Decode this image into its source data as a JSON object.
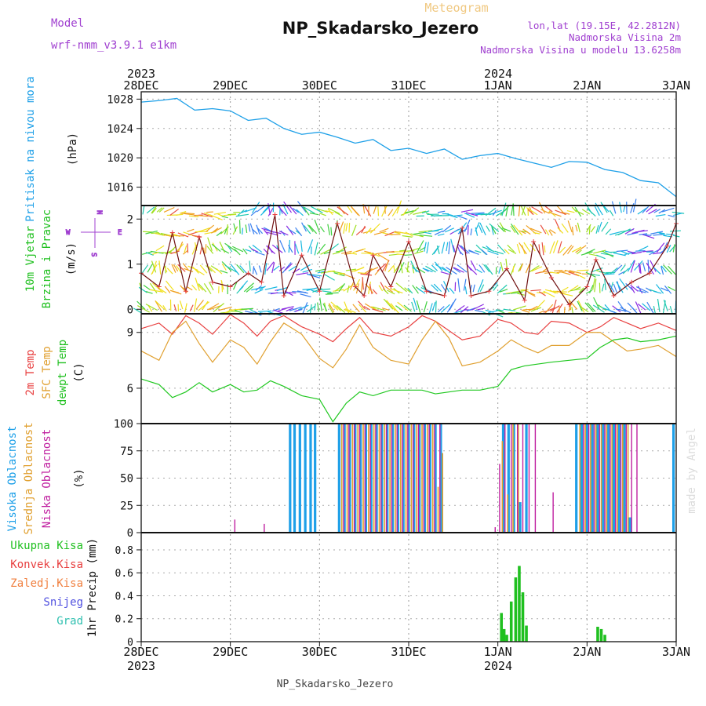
{
  "header": {
    "model_label": "Model",
    "model_name": "wrf-nmm_v3.9.1 e1km",
    "product": "Meteogram",
    "station": "NP_Skadarsko_Jezero",
    "lonlat": "lon,lat (19.15E, 42.2812N)",
    "elev": "Nadmorska Visina 2m",
    "model_elev": "Nadmorska Visina u modelu 13.6258m"
  },
  "footer": {
    "station": "NP_Skadarsko_Jezero"
  },
  "watermark": "made by Angel",
  "colors": {
    "pressure": "#1ea0e8",
    "t2m": "#e84040",
    "sfc": "#e0a030",
    "dewpt": "#20c820",
    "cloud_high": "#1ea0e8",
    "cloud_mid": "#e0a030",
    "cloud_low": "#c020a0",
    "precip": "#20c020",
    "model": "#a040d0"
  },
  "chart_data": [
    {
      "type": "line",
      "panel": "pressure",
      "title": "Pritisak na nivou mora",
      "unit": "(hPa)",
      "ylim": [
        1013.5,
        1029
      ],
      "yticks": [
        "1028",
        "1024",
        "1020",
        "1016"
      ],
      "x": [
        0,
        0.2,
        0.4,
        0.6,
        0.8,
        1.0,
        1.2,
        1.4,
        1.6,
        1.8,
        2.0,
        2.2,
        2.4,
        2.6,
        2.8,
        3.0,
        3.2,
        3.4,
        3.6,
        3.8,
        4.0,
        4.2,
        4.4,
        4.6,
        4.8,
        5.0,
        5.2,
        5.4,
        5.6,
        5.8,
        6.0
      ],
      "values": [
        1027.6,
        1027.8,
        1028.1,
        1026.5,
        1026.7,
        1026.4,
        1025.1,
        1025.4,
        1024.0,
        1023.2,
        1023.5,
        1022.8,
        1022.0,
        1022.5,
        1021.0,
        1021.3,
        1020.6,
        1021.2,
        1019.8,
        1020.3,
        1020.6,
        1019.9,
        1019.3,
        1018.7,
        1019.5,
        1019.4,
        1018.4,
        1018.0,
        1016.9,
        1016.6,
        1014.7
      ]
    },
    {
      "type": "line",
      "panel": "wind",
      "title": "10m Vjetar",
      "subtitle": "Brzina i Pravac",
      "unit": "(m/s)",
      "compass": [
        "N",
        "W",
        "E",
        "S"
      ],
      "ylim": [
        -0.1,
        2.3
      ],
      "yticks": [
        "0",
        "1",
        "2"
      ],
      "x": [
        0,
        0.2,
        0.35,
        0.5,
        0.65,
        0.8,
        1.0,
        1.2,
        1.35,
        1.5,
        1.6,
        1.8,
        2.0,
        2.2,
        2.4,
        2.5,
        2.6,
        2.8,
        3.0,
        3.2,
        3.4,
        3.6,
        3.7,
        3.9,
        4.1,
        4.3,
        4.4,
        4.6,
        4.8,
        5.0,
        5.1,
        5.3,
        5.5,
        5.7,
        5.9,
        6.0
      ],
      "values": [
        0.8,
        0.5,
        1.7,
        0.4,
        1.6,
        0.6,
        0.5,
        0.8,
        0.6,
        2.1,
        0.3,
        1.2,
        0.4,
        1.9,
        0.5,
        0.3,
        1.2,
        0.5,
        1.5,
        0.4,
        0.3,
        1.8,
        0.3,
        0.4,
        0.9,
        0.2,
        1.5,
        0.7,
        0.1,
        0.5,
        1.1,
        0.3,
        0.6,
        0.8,
        1.4,
        1.9
      ]
    },
    {
      "type": "line",
      "panel": "temperature",
      "unit": "(C)",
      "ylim": [
        4.1,
        10.0
      ],
      "yticks": [
        "9",
        "6"
      ],
      "x": [
        0,
        0.2,
        0.35,
        0.5,
        0.65,
        0.8,
        1.0,
        1.15,
        1.3,
        1.45,
        1.6,
        1.8,
        2.0,
        2.15,
        2.3,
        2.45,
        2.6,
        2.8,
        3.0,
        3.15,
        3.3,
        3.45,
        3.6,
        3.8,
        4.0,
        4.15,
        4.3,
        4.45,
        4.6,
        4.8,
        5.0,
        5.15,
        5.3,
        5.45,
        5.6,
        5.8,
        6.0
      ],
      "series": [
        {
          "name": "2m Temp",
          "values": [
            9.2,
            9.5,
            8.9,
            9.9,
            9.5,
            8.9,
            10.0,
            9.5,
            8.8,
            9.6,
            9.9,
            9.3,
            8.9,
            8.5,
            9.2,
            9.8,
            9.0,
            8.8,
            9.3,
            9.9,
            9.6,
            9.1,
            8.6,
            8.8,
            9.7,
            9.5,
            9.0,
            8.9,
            9.6,
            9.5,
            9.0,
            9.3,
            9.8,
            9.5,
            9.2,
            9.5,
            9.1
          ]
        },
        {
          "name": "SFC Temp",
          "values": [
            8.0,
            7.5,
            9.0,
            9.6,
            8.4,
            7.4,
            8.6,
            8.2,
            7.3,
            8.5,
            9.5,
            8.9,
            7.6,
            7.1,
            8.1,
            9.4,
            8.2,
            7.5,
            7.3,
            8.6,
            9.6,
            8.7,
            7.2,
            7.4,
            8.0,
            8.6,
            8.2,
            7.9,
            8.3,
            8.3,
            9.0,
            9.0,
            8.5,
            8.0,
            8.1,
            8.3,
            7.7
          ]
        },
        {
          "name": "dewpt Temp",
          "values": [
            6.5,
            6.2,
            5.5,
            5.8,
            6.3,
            5.8,
            6.2,
            5.8,
            5.9,
            6.4,
            6.1,
            5.6,
            5.4,
            4.2,
            5.2,
            5.8,
            5.6,
            5.9,
            5.9,
            5.9,
            5.7,
            5.8,
            5.9,
            5.9,
            6.1,
            7.0,
            7.2,
            7.3,
            7.4,
            7.5,
            7.6,
            8.2,
            8.6,
            8.7,
            8.5,
            8.6,
            8.8
          ]
        }
      ]
    },
    {
      "type": "bar",
      "panel": "clouds",
      "unit": "(%)",
      "ylim": [
        0,
        100
      ],
      "yticks": [
        "100",
        "75",
        "50",
        "25",
        "0"
      ],
      "series": [
        {
          "name": "Visoka Oblacnost",
          "x": [
            1.67,
            1.72,
            1.78,
            1.84,
            1.9,
            1.95,
            2.22,
            2.28,
            2.34,
            2.4,
            2.46,
            2.52,
            2.58,
            2.64,
            2.7,
            2.76,
            2.82,
            2.88,
            2.94,
            3.0,
            3.06,
            3.12,
            3.18,
            3.24,
            3.3,
            3.36,
            4.06,
            4.12,
            4.18,
            4.25,
            4.32,
            4.88,
            4.94,
            5.0,
            5.06,
            5.12,
            5.18,
            5.24,
            5.3,
            5.36,
            5.42,
            5.48,
            5.97
          ],
          "values": [
            100,
            100,
            100,
            100,
            100,
            100,
            100,
            100,
            100,
            100,
            100,
            100,
            100,
            100,
            100,
            100,
            100,
            100,
            100,
            100,
            100,
            100,
            100,
            100,
            100,
            100,
            100,
            100,
            100,
            28,
            100,
            100,
            100,
            100,
            100,
            100,
            100,
            100,
            100,
            100,
            100,
            14,
            100
          ]
        },
        {
          "name": "Srednja Oblacnost",
          "x": [
            2.25,
            2.31,
            2.37,
            2.43,
            2.49,
            2.55,
            2.61,
            2.67,
            2.73,
            2.79,
            2.85,
            2.91,
            2.97,
            3.03,
            3.09,
            3.15,
            3.21,
            3.27,
            3.33,
            3.38,
            4.05,
            4.11,
            4.17,
            4.23,
            4.92,
            4.98,
            5.04,
            5.1,
            5.16,
            5.22,
            5.28,
            5.34,
            5.4,
            5.46
          ],
          "values": [
            100,
            100,
            100,
            100,
            100,
            100,
            100,
            100,
            100,
            100,
            100,
            100,
            100,
            100,
            100,
            100,
            100,
            100,
            42,
            73,
            84,
            35,
            100,
            100,
            100,
            100,
            100,
            100,
            100,
            100,
            100,
            100,
            100,
            100
          ]
        },
        {
          "name": "Niska Oblacnost",
          "x": [
            1.05,
            1.38,
            2.27,
            2.33,
            2.39,
            2.45,
            2.51,
            2.57,
            2.63,
            2.69,
            2.75,
            2.81,
            2.87,
            2.93,
            2.99,
            3.05,
            3.11,
            3.17,
            3.23,
            3.29,
            3.35,
            3.97,
            4.02,
            4.08,
            4.15,
            4.22,
            4.28,
            4.35,
            4.42,
            4.62,
            4.96,
            5.02,
            5.08,
            5.14,
            5.2,
            5.26,
            5.32,
            5.38,
            5.44,
            5.5,
            5.56
          ],
          "values": [
            12,
            8,
            100,
            100,
            100,
            100,
            100,
            100,
            100,
            100,
            100,
            100,
            100,
            100,
            100,
            100,
            100,
            100,
            100,
            100,
            100,
            5,
            63,
            100,
            100,
            100,
            100,
            100,
            100,
            37,
            100,
            100,
            100,
            100,
            100,
            100,
            100,
            100,
            100,
            100,
            100
          ]
        }
      ]
    },
    {
      "type": "bar",
      "panel": "precip",
      "unit": "1hr Precip (mm)",
      "ylim": [
        0,
        0.95
      ],
      "yticks": [
        "0.8",
        "0.6",
        "0.4",
        "0.2",
        "0"
      ],
      "legend": [
        "Ukupna Kisa",
        "Konvek.Kisa",
        "Zaledj.Kisa",
        "Snijeg",
        "Grad"
      ],
      "x": [
        4.04,
        4.07,
        4.1,
        4.15,
        4.2,
        4.24,
        4.28,
        4.32,
        5.12,
        5.16,
        5.2
      ],
      "values": [
        0.25,
        0.11,
        0.06,
        0.35,
        0.56,
        0.66,
        0.43,
        0.14,
        0.13,
        0.11,
        0.06
      ]
    }
  ],
  "xaxis": {
    "top_years": [
      "2023",
      "2024"
    ],
    "bottom_years": [
      "2023",
      "2024"
    ],
    "ticks": [
      "28DEC",
      "29DEC",
      "30DEC",
      "31DEC",
      "1JAN",
      "2JAN",
      "3JAN"
    ]
  },
  "panels": {
    "wind_label1": "10m Vjetar",
    "wind_label2": "Brzina i Pravac",
    "temp_label1": "2m Temp",
    "temp_label2": "SFC Temp",
    "temp_label3": "dewpt Temp",
    "cloud_label1": "Visoka Oblacnost",
    "cloud_label2": "Srednja Oblacnost",
    "cloud_label3": "Niska Oblacnost",
    "pressure_label": "Pritisak na nivou mora"
  }
}
